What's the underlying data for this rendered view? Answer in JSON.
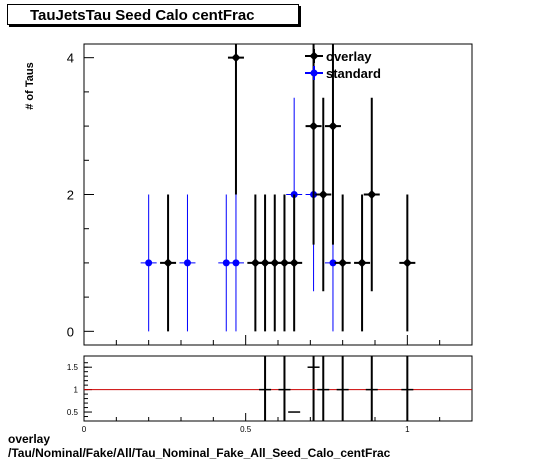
{
  "title": "TauJetsTau Seed Calo centFrac",
  "footer": {
    "line1": "overlay",
    "line2": "/Tau/Nominal/Fake/All/Tau_Nominal_Fake_All_Seed_Calo_centFrac"
  },
  "chart_data": [
    {
      "type": "scatter",
      "ylabel": "# of Taus",
      "xlim": [
        0,
        1.2
      ],
      "ylim": [
        -0.2,
        4.2
      ],
      "yticks": [
        0,
        2,
        4
      ],
      "legend": {
        "placement": "top-right",
        "entries": [
          "overlay",
          "standard"
        ]
      },
      "series": [
        {
          "name": "overlay",
          "color": "#000000",
          "points": [
            {
              "x": 0.26,
              "y": 1
            },
            {
              "x": 0.47,
              "y": 4
            },
            {
              "x": 0.53,
              "y": 1
            },
            {
              "x": 0.56,
              "y": 1
            },
            {
              "x": 0.59,
              "y": 1
            },
            {
              "x": 0.62,
              "y": 1
            },
            {
              "x": 0.65,
              "y": 1
            },
            {
              "x": 0.71,
              "y": 3
            },
            {
              "x": 0.74,
              "y": 2
            },
            {
              "x": 0.77,
              "y": 3
            },
            {
              "x": 0.8,
              "y": 1
            },
            {
              "x": 0.86,
              "y": 1
            },
            {
              "x": 0.89,
              "y": 2
            },
            {
              "x": 1.0,
              "y": 1
            }
          ]
        },
        {
          "name": "standard",
          "color": "#0000ff",
          "points": [
            {
              "x": 0.2,
              "y": 1
            },
            {
              "x": 0.32,
              "y": 1
            },
            {
              "x": 0.44,
              "y": 1
            },
            {
              "x": 0.47,
              "y": 1
            },
            {
              "x": 0.65,
              "y": 2
            },
            {
              "x": 0.71,
              "y": 2
            },
            {
              "x": 0.77,
              "y": 1
            }
          ]
        }
      ]
    },
    {
      "type": "scatter",
      "xlim": [
        0,
        1.2
      ],
      "ylim": [
        0.3,
        1.75
      ],
      "xticks": [
        {
          "v": 0,
          "label": "0"
        },
        {
          "v": 0.5,
          "label": "0.5"
        },
        {
          "v": 1,
          "label": "1"
        }
      ],
      "yticks": [
        {
          "v": 0.5,
          "label": "0.5"
        },
        {
          "v": 1,
          "label": "1"
        },
        {
          "v": 1.5,
          "label": "1.5"
        }
      ],
      "reference_line": {
        "y": 1,
        "color": "#cc0000"
      },
      "ratio_points": [
        {
          "x": 0.56,
          "y": 1
        },
        {
          "x": 0.62,
          "y": 1
        },
        {
          "x": 0.65,
          "y": 0.5
        },
        {
          "x": 0.71,
          "y": 1.5
        },
        {
          "x": 0.74,
          "y": 1
        },
        {
          "x": 0.8,
          "y": 1
        },
        {
          "x": 0.89,
          "y": 1
        },
        {
          "x": 1.0,
          "y": 1
        }
      ],
      "spikes_x": [
        0.56,
        0.62,
        0.71,
        0.74,
        0.8,
        0.89,
        1.0
      ]
    }
  ]
}
